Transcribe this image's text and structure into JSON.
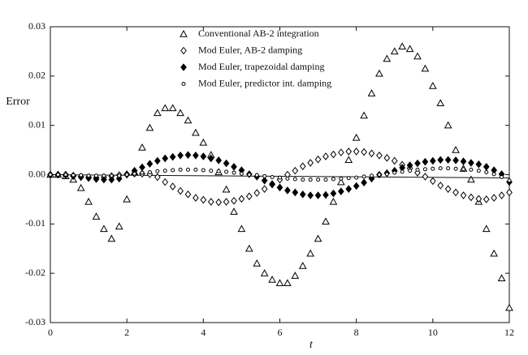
{
  "chart_data": {
    "type": "scatter",
    "xlabel": "t",
    "ylabel": "Error",
    "xlim": [
      0,
      12
    ],
    "ylim": [
      -0.03,
      0.03
    ],
    "xticks": [
      0,
      2,
      4,
      6,
      8,
      10,
      12
    ],
    "yticks": [
      -0.03,
      -0.02,
      -0.01,
      {
        "value": 0,
        "label": "0.00"
      },
      0.01,
      0.02,
      0.03
    ],
    "legend": "top",
    "x": [
      0,
      0.2,
      0.4,
      0.6,
      0.8,
      1,
      1.2,
      1.4,
      1.6,
      1.8,
      2,
      2.2,
      2.4,
      2.6,
      2.8,
      3,
      3.2,
      3.4,
      3.6,
      3.8,
      4,
      4.2,
      4.4,
      4.6,
      4.8,
      5,
      5.2,
      5.4,
      5.6,
      5.8,
      6,
      6.2,
      6.4,
      6.6,
      6.8,
      7,
      7.2,
      7.4,
      7.6,
      7.8,
      8,
      8.2,
      8.4,
      8.6,
      8.8,
      9,
      9.2,
      9.4,
      9.6,
      9.8,
      10,
      10.2,
      10.4,
      10.6,
      10.8,
      11,
      11.2,
      11.4,
      11.6,
      11.8,
      12
    ],
    "series": [
      {
        "name": "Conventional AB-2 integration",
        "marker": "triangle-open",
        "color": "#000000",
        "values": [
          0,
          0,
          -0.0003,
          -0.001,
          -0.0027,
          -0.0055,
          -0.0085,
          -0.011,
          -0.013,
          -0.0105,
          -0.005,
          0.0005,
          0.0055,
          0.0095,
          0.0125,
          0.0135,
          0.0135,
          0.0125,
          0.011,
          0.0085,
          0.0065,
          0.004,
          0.0005,
          -0.003,
          -0.0075,
          -0.011,
          -0.015,
          -0.018,
          -0.02,
          -0.0213,
          -0.022,
          -0.022,
          -0.0205,
          -0.0185,
          -0.016,
          -0.013,
          -0.0095,
          -0.0055,
          -0.0015,
          0.003,
          0.0075,
          0.012,
          0.0165,
          0.0205,
          0.0235,
          0.025,
          0.026,
          0.0255,
          0.024,
          0.0215,
          0.018,
          0.0145,
          0.01,
          0.005,
          0.0012,
          -0.001,
          -0.0055,
          -0.011,
          -0.016,
          -0.021,
          -0.027
        ]
      },
      {
        "name": "Mod Euler, AB-2 damping",
        "marker": "diamond-open",
        "color": "#000000",
        "values": [
          0,
          0,
          0,
          -0.0002,
          -0.0004,
          -0.0005,
          -0.0006,
          -0.0005,
          -0.0003,
          -0.0001,
          0.0001,
          0.0002,
          0.0002,
          0.0001,
          -0.0005,
          -0.0015,
          -0.0024,
          -0.0033,
          -0.004,
          -0.0047,
          -0.0051,
          -0.0055,
          -0.0056,
          -0.0055,
          -0.0053,
          -0.0049,
          -0.0044,
          -0.0037,
          -0.0029,
          -0.002,
          -0.001,
          0,
          0.0008,
          0.0017,
          0.0024,
          0.0031,
          0.0037,
          0.0041,
          0.0045,
          0.0047,
          0.0047,
          0.0046,
          0.0043,
          0.0039,
          0.0034,
          0.0028,
          0.002,
          0.0013,
          0.0004,
          -0.0004,
          -0.0013,
          -0.0022,
          -0.0029,
          -0.0036,
          -0.0042,
          -0.0046,
          -0.0049,
          -0.005,
          -0.0047,
          -0.0042,
          -0.0036
        ]
      },
      {
        "name": "Mod Euler, trapezoidal damping",
        "marker": "diamond-filled",
        "color": "#000000",
        "values": [
          0,
          0,
          -0.0001,
          -0.0003,
          -0.0005,
          -0.0007,
          -0.0009,
          -0.001,
          -0.001,
          -0.0008,
          0,
          0.0008,
          0.0015,
          0.0022,
          0.0028,
          0.0033,
          0.0036,
          0.0039,
          0.004,
          0.0039,
          0.0037,
          0.0033,
          0.0029,
          0.0023,
          0.0016,
          0.0009,
          0.0001,
          -0.0004,
          -0.0012,
          -0.0019,
          -0.0026,
          -0.0032,
          -0.0036,
          -0.004,
          -0.0042,
          -0.0042,
          -0.0041,
          -0.0038,
          -0.0034,
          -0.0029,
          -0.0023,
          -0.0016,
          -0.0008,
          0,
          0.0003,
          0.0008,
          0.0014,
          0.0019,
          0.0023,
          0.0026,
          0.0028,
          0.003,
          0.003,
          0.0029,
          0.0027,
          0.0024,
          0.0021,
          0.0016,
          0.0009,
          0.0001,
          -0.0015
        ]
      },
      {
        "name": "Mod Euler, predictor int. damping",
        "marker": "circle-open",
        "color": "#000000",
        "values": [
          0,
          0,
          0,
          -0.0001,
          -0.0001,
          -0.0002,
          -0.0002,
          -0.0002,
          -0.0002,
          -0.0002,
          0,
          0.0002,
          0.0004,
          0.0005,
          0.0007,
          0.0008,
          0.0009,
          0.001,
          0.001,
          0.001,
          0.0009,
          0.0008,
          0.0007,
          0.0006,
          0.0004,
          0.0002,
          0,
          -0.0001,
          -0.0003,
          -0.0005,
          -0.0006,
          -0.0008,
          -0.0009,
          -0.001,
          -0.001,
          -0.001,
          -0.001,
          -0.0009,
          -0.0008,
          -0.0007,
          -0.0006,
          -0.0004,
          -0.0002,
          0,
          0.0001,
          0.0004,
          0.0006,
          0.0008,
          0.001,
          0.0011,
          0.0012,
          0.0013,
          0.0013,
          0.0012,
          0.0011,
          0.001,
          0.0008,
          0.0005,
          0.0001,
          -0.0005,
          -0.0012
        ]
      }
    ]
  }
}
